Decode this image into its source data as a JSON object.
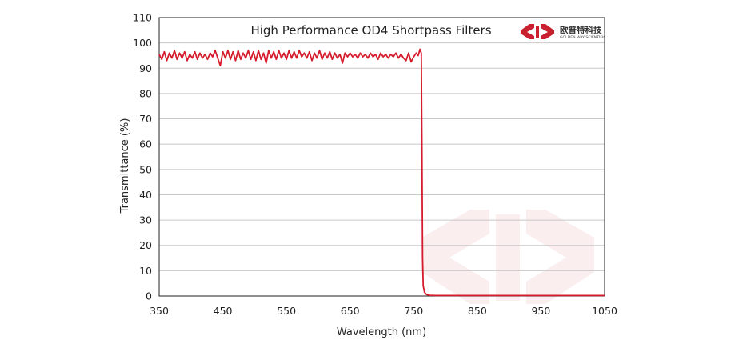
{
  "chart_data": {
    "type": "line",
    "title": "High Performance OD4 Shortpass  Filters",
    "xlabel": "Wavelength  (nm)",
    "ylabel": "Transmittance  (%)",
    "xlim": [
      350,
      1050
    ],
    "ylim": [
      0,
      110
    ],
    "xticks": [
      350,
      450,
      550,
      650,
      750,
      850,
      950,
      1050
    ],
    "yticks": [
      0,
      10,
      20,
      30,
      40,
      50,
      60,
      70,
      80,
      90,
      100,
      110
    ],
    "grid": "horizontal",
    "series": [
      {
        "color": "#d51c2c",
        "points": [
          [
            350,
            95.5
          ],
          [
            354,
            93.5
          ],
          [
            358,
            96.5
          ],
          [
            362,
            93
          ],
          [
            366,
            96
          ],
          [
            370,
            94
          ],
          [
            374,
            97
          ],
          [
            378,
            93.5
          ],
          [
            382,
            96
          ],
          [
            386,
            94
          ],
          [
            390,
            96.5
          ],
          [
            394,
            93
          ],
          [
            398,
            95.5
          ],
          [
            402,
            94
          ],
          [
            406,
            96.5
          ],
          [
            410,
            93.5
          ],
          [
            414,
            96
          ],
          [
            418,
            94
          ],
          [
            422,
            95.5
          ],
          [
            426,
            93.5
          ],
          [
            430,
            96
          ],
          [
            434,
            94.5
          ],
          [
            438,
            97
          ],
          [
            442,
            94
          ],
          [
            446,
            91
          ],
          [
            450,
            96.5
          ],
          [
            454,
            94
          ],
          [
            458,
            97
          ],
          [
            462,
            93.5
          ],
          [
            466,
            96.5
          ],
          [
            470,
            93
          ],
          [
            474,
            97
          ],
          [
            478,
            93.5
          ],
          [
            482,
            96
          ],
          [
            486,
            94
          ],
          [
            490,
            97
          ],
          [
            494,
            93.5
          ],
          [
            498,
            96.5
          ],
          [
            502,
            93
          ],
          [
            506,
            97
          ],
          [
            510,
            93.5
          ],
          [
            514,
            96
          ],
          [
            518,
            92
          ],
          [
            522,
            97
          ],
          [
            526,
            94
          ],
          [
            530,
            96.5
          ],
          [
            534,
            93.5
          ],
          [
            538,
            97
          ],
          [
            542,
            94
          ],
          [
            546,
            96
          ],
          [
            550,
            93.5
          ],
          [
            554,
            97
          ],
          [
            558,
            94
          ],
          [
            562,
            96.5
          ],
          [
            566,
            94
          ],
          [
            570,
            97
          ],
          [
            574,
            94.5
          ],
          [
            578,
            96
          ],
          [
            582,
            94
          ],
          [
            586,
            96.5
          ],
          [
            590,
            93
          ],
          [
            594,
            96
          ],
          [
            598,
            94
          ],
          [
            602,
            97
          ],
          [
            606,
            93.5
          ],
          [
            610,
            96
          ],
          [
            614,
            94
          ],
          [
            618,
            96.5
          ],
          [
            622,
            93.5
          ],
          [
            626,
            96
          ],
          [
            630,
            94
          ],
          [
            634,
            95.5
          ],
          [
            638,
            92
          ],
          [
            642,
            96
          ],
          [
            646,
            94.5
          ],
          [
            650,
            96
          ],
          [
            654,
            94.5
          ],
          [
            658,
            95.5
          ],
          [
            662,
            94
          ],
          [
            666,
            96
          ],
          [
            670,
            94.5
          ],
          [
            674,
            95.5
          ],
          [
            678,
            94
          ],
          [
            682,
            96
          ],
          [
            686,
            94.5
          ],
          [
            690,
            95.5
          ],
          [
            694,
            93.5
          ],
          [
            698,
            96
          ],
          [
            702,
            94.5
          ],
          [
            706,
            95.5
          ],
          [
            710,
            94
          ],
          [
            714,
            95.5
          ],
          [
            718,
            94.5
          ],
          [
            722,
            96
          ],
          [
            726,
            94
          ],
          [
            730,
            95.5
          ],
          [
            734,
            94
          ],
          [
            738,
            93
          ],
          [
            742,
            96
          ],
          [
            746,
            92.5
          ],
          [
            750,
            94.5
          ],
          [
            754,
            96
          ],
          [
            757,
            95
          ],
          [
            760,
            97.5
          ],
          [
            762,
            96
          ],
          [
            763,
            60
          ],
          [
            764,
            15
          ],
          [
            765,
            4
          ],
          [
            767,
            1.5
          ],
          [
            770,
            0.6
          ],
          [
            775,
            0.3
          ],
          [
            785,
            0.2
          ],
          [
            800,
            0.2
          ],
          [
            850,
            0.2
          ],
          [
            900,
            0.2
          ],
          [
            950,
            0.2
          ],
          [
            1000,
            0.2
          ],
          [
            1050,
            0.2
          ]
        ]
      }
    ]
  },
  "logo": {
    "cn_text": "欧普特科技",
    "en_text": "GOLDEN WAY SCIENTIFIC",
    "color": "#c8202e"
  },
  "watermark": {
    "color": "#c8202e"
  }
}
